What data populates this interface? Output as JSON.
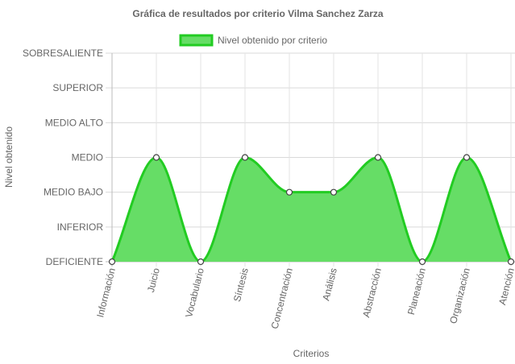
{
  "chart_data": {
    "type": "area",
    "title": "Gráfica de resultados por criterio Vilma Sanchez Zarza",
    "xlabel": "Criterios",
    "ylabel": "Nivel obtenido",
    "categories": [
      "Información",
      "Juicio",
      "Vocabulario",
      "Síntesis",
      "Concentración",
      "Análisis",
      "Abstracción",
      "Planeación",
      "Organización",
      "Atención"
    ],
    "y_levels": [
      "DEFICIENTE",
      "INFERIOR",
      "MEDIO BAJO",
      "MEDIO",
      "MEDIO ALTO",
      "SUPERIOR",
      "SOBRESALIENTE"
    ],
    "ylim": [
      0,
      6
    ],
    "grid": true,
    "legend_position": "top",
    "series": [
      {
        "name": "Nivel obtenido por criterio",
        "values": [
          0,
          3,
          0,
          3,
          2,
          2,
          3,
          0,
          3,
          0
        ],
        "value_labels": [
          "DEFICIENTE",
          "MEDIO",
          "DEFICIENTE",
          "MEDIO",
          "MEDIO BAJO",
          "MEDIO BAJO",
          "MEDIO",
          "DEFICIENTE",
          "MEDIO",
          "DEFICIENTE"
        ],
        "fill_color": "#66dd66",
        "line_color": "#22cc22"
      }
    ]
  }
}
